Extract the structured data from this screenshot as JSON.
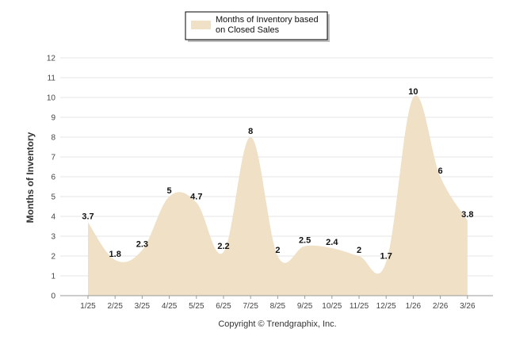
{
  "chart_data": {
    "type": "area",
    "categories": [
      "1/25",
      "2/25",
      "3/25",
      "4/25",
      "5/25",
      "6/25",
      "7/25",
      "8/25",
      "9/25",
      "10/25",
      "11/25",
      "12/25",
      "1/26",
      "2/26",
      "3/26"
    ],
    "series": [
      {
        "name": "Months of Inventory based on Closed Sales",
        "values": [
          3.7,
          1.8,
          2.3,
          5,
          4.7,
          2.2,
          8,
          2,
          2.5,
          2.4,
          2,
          1.7,
          10,
          6,
          3.8
        ],
        "labels": [
          "3.7",
          "1.8",
          "2.3",
          "5",
          "4.7",
          "2.2",
          "8",
          "2",
          "2.5",
          "2.4",
          "2",
          "1.7",
          "10",
          "6",
          "3.8"
        ],
        "color": "#efe0c6"
      }
    ],
    "legend_lines": [
      "Months of Inventory based",
      "on Closed Sales"
    ],
    "ylabel": "Months of Inventory",
    "xlabel": "",
    "ylim": [
      0,
      12
    ],
    "yticks": [
      "0",
      "1",
      "2",
      "3",
      "4",
      "5",
      "6",
      "7",
      "8",
      "9",
      "10",
      "11",
      "12"
    ],
    "grid": true,
    "legend": "top-center"
  },
  "footer": {
    "copyright": "Copyright © Trendgraphix, Inc."
  }
}
